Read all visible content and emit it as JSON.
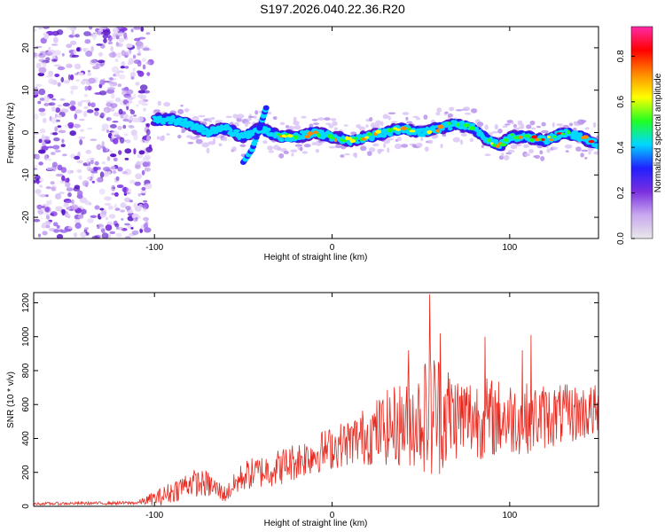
{
  "title": "S197.2026.040.22.36.R20",
  "chart_data": [
    {
      "type": "heatmap",
      "xlabel": "Height of straight line (km)",
      "ylabel": "Frequency (Hz)",
      "xlim": [
        -168,
        150
      ],
      "ylim": [
        -25,
        25
      ],
      "xticks": [
        -100,
        0,
        100
      ],
      "xtick_labels": [
        "-100",
        "0",
        "100"
      ],
      "yticks": [
        -20,
        -10,
        0,
        10,
        20
      ],
      "ytick_labels": [
        "-20",
        "-10",
        "0",
        "10",
        "20"
      ],
      "noise_region_x": [
        -168,
        -102
      ],
      "ridge": [
        {
          "x": -100,
          "y": 3
        },
        {
          "x": -90,
          "y": 3
        },
        {
          "x": -80,
          "y": 2
        },
        {
          "x": -70,
          "y": 0
        },
        {
          "x": -60,
          "y": 1
        },
        {
          "x": -50,
          "y": -1
        },
        {
          "x": -40,
          "y": 1
        },
        {
          "x": -30,
          "y": -1
        },
        {
          "x": -20,
          "y": -1
        },
        {
          "x": -10,
          "y": 0
        },
        {
          "x": 0,
          "y": -1
        },
        {
          "x": 10,
          "y": -2
        },
        {
          "x": 20,
          "y": -1
        },
        {
          "x": 30,
          "y": 0
        },
        {
          "x": 40,
          "y": 1
        },
        {
          "x": 50,
          "y": 0
        },
        {
          "x": 60,
          "y": 1
        },
        {
          "x": 70,
          "y": 2
        },
        {
          "x": 80,
          "y": 1
        },
        {
          "x": 88,
          "y": -2
        },
        {
          "x": 95,
          "y": -3
        },
        {
          "x": 100,
          "y": -1
        },
        {
          "x": 110,
          "y": -1
        },
        {
          "x": 120,
          "y": -2
        },
        {
          "x": 130,
          "y": 0
        },
        {
          "x": 140,
          "y": -1
        },
        {
          "x": 150,
          "y": -3
        }
      ],
      "branch": [
        {
          "x": -50,
          "y": -7
        },
        {
          "x": -45,
          "y": -4
        },
        {
          "x": -40,
          "y": 2
        },
        {
          "x": -37,
          "y": 6
        }
      ]
    },
    {
      "type": "colorbar",
      "label": "Normalized spectral amplitude",
      "range": [
        0,
        0.93
      ],
      "ticks": [
        0,
        0.2,
        0.4,
        0.6,
        0.8
      ],
      "tick_labels": [
        "0.0",
        "0.2",
        "0.4",
        "0.6",
        "0.8"
      ],
      "colors": [
        "#e8e8e8",
        "#c9a8f0",
        "#7a2ee0",
        "#2020ff",
        "#00d8ff",
        "#22ff22",
        "#ffff00",
        "#ff8800",
        "#ff0000",
        "#ff2aa8"
      ]
    },
    {
      "type": "line",
      "xlabel": "Height of straight line (km)",
      "ylabel": "SNR (10 * v/v)",
      "xlim": [
        -168,
        150
      ],
      "ylim": [
        0,
        1260
      ],
      "xticks": [
        -100,
        0,
        100
      ],
      "xtick_labels": [
        "-100",
        "0",
        "100"
      ],
      "yticks": [
        0,
        200,
        400,
        600,
        800,
        1000,
        1200
      ],
      "ytick_labels": [
        "0",
        "200",
        "400",
        "600",
        "800",
        "1000",
        "1200"
      ],
      "series": [
        {
          "name": "SNR",
          "color": "#e8281e",
          "envelope": [
            {
              "x": -168,
              "base": 15,
              "amp": 8
            },
            {
              "x": -110,
              "base": 20,
              "amp": 10
            },
            {
              "x": -95,
              "base": 60,
              "amp": 60
            },
            {
              "x": -80,
              "base": 140,
              "amp": 80
            },
            {
              "x": -70,
              "base": 130,
              "amp": 80
            },
            {
              "x": -60,
              "base": 70,
              "amp": 50
            },
            {
              "x": -50,
              "base": 180,
              "amp": 90
            },
            {
              "x": -30,
              "base": 230,
              "amp": 110
            },
            {
              "x": -10,
              "base": 310,
              "amp": 120
            },
            {
              "x": 10,
              "base": 380,
              "amp": 140
            },
            {
              "x": 30,
              "base": 460,
              "amp": 220
            },
            {
              "x": 50,
              "base": 520,
              "amp": 300
            },
            {
              "x": 56,
              "base": 560,
              "amp": 420
            },
            {
              "x": 70,
              "base": 530,
              "amp": 260
            },
            {
              "x": 90,
              "base": 520,
              "amp": 240
            },
            {
              "x": 110,
              "base": 520,
              "amp": 210
            },
            {
              "x": 130,
              "base": 540,
              "amp": 180
            },
            {
              "x": 150,
              "base": 560,
              "amp": 160
            }
          ],
          "peaks": [
            {
              "x": 55,
              "y": 1250
            },
            {
              "x": 43,
              "y": 920
            },
            {
              "x": 61,
              "y": 1020
            },
            {
              "x": 86,
              "y": 1000
            },
            {
              "x": 112,
              "y": 1010
            },
            {
              "x": 107,
              "y": 920
            }
          ]
        }
      ]
    }
  ]
}
